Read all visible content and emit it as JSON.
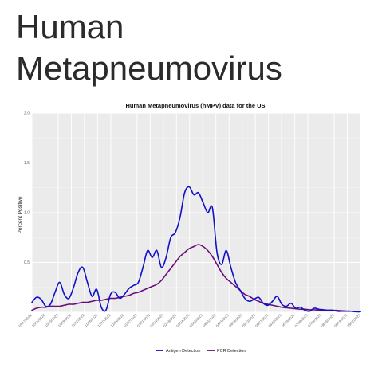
{
  "page": {
    "heading_lines": [
      "Human",
      "Metapneumovirus"
    ]
  },
  "chart_data": {
    "type": "line",
    "title": "Human Metapneumovirus (hMPV) data for the US",
    "xlabel": "",
    "ylabel": "Percent Positive",
    "ylim": [
      0,
      2.0
    ],
    "y_ticks": [
      0.0,
      0.5,
      1.0,
      1.5,
      2.0
    ],
    "y_tick_labels": [
      "",
      "0.5",
      "1.0",
      "1.5",
      "2.0"
    ],
    "x_tick_labels": [
      "09/17/2022",
      "10/01/2022",
      "10/15/2022",
      "10/29/2022",
      "11/12/2022",
      "11/26/2022",
      "12/10/2022",
      "12/24/2022",
      "01/07/2023",
      "01/21/2023",
      "02/04/2023",
      "02/18/2023",
      "03/04/2023",
      "03/18/2023",
      "04/01/2023",
      "04/15/2023",
      "04/29/2023",
      "05/13/2023",
      "05/27/2023",
      "06/10/2023",
      "06/24/2023",
      "07/08/2023",
      "07/22/2023",
      "08/05/2023",
      "08/19/2023",
      "09/02/2023"
    ],
    "grid": true,
    "legend_position": "bottom",
    "series": [
      {
        "name": "Antigen Detection",
        "color": "#1010c8",
        "values": [
          0.1,
          0.15,
          0.13,
          0.06,
          0.08,
          0.2,
          0.3,
          0.18,
          0.14,
          0.25,
          0.4,
          0.45,
          0.3,
          0.16,
          0.23,
          0.05,
          0.02,
          0.18,
          0.2,
          0.14,
          0.18,
          0.24,
          0.27,
          0.3,
          0.45,
          0.62,
          0.55,
          0.62,
          0.45,
          0.55,
          0.75,
          0.8,
          0.95,
          1.2,
          1.26,
          1.18,
          1.2,
          1.1,
          1.0,
          1.05,
          0.6,
          0.48,
          0.62,
          0.45,
          0.3,
          0.22,
          0.14,
          0.11,
          0.13,
          0.15,
          0.09,
          0.07,
          0.11,
          0.16,
          0.08,
          0.06,
          0.09,
          0.04,
          0.05,
          0.02,
          0.01,
          0.04,
          0.03,
          0.025,
          0.02,
          0.02,
          0.01,
          0.01,
          0.01,
          0.01,
          0.005,
          0.005
        ]
      },
      {
        "name": "PCR Detection",
        "color": "#6a0d7a",
        "values": [
          0.02,
          0.04,
          0.05,
          0.05,
          0.06,
          0.06,
          0.06,
          0.07,
          0.08,
          0.08,
          0.09,
          0.1,
          0.1,
          0.11,
          0.12,
          0.12,
          0.13,
          0.14,
          0.14,
          0.15,
          0.16,
          0.17,
          0.19,
          0.2,
          0.22,
          0.24,
          0.26,
          0.28,
          0.32,
          0.38,
          0.44,
          0.5,
          0.56,
          0.6,
          0.64,
          0.66,
          0.68,
          0.66,
          0.62,
          0.56,
          0.48,
          0.4,
          0.34,
          0.3,
          0.26,
          0.22,
          0.18,
          0.16,
          0.13,
          0.11,
          0.09,
          0.08,
          0.07,
          0.06,
          0.05,
          0.045,
          0.04,
          0.035,
          0.03,
          0.03,
          0.025,
          0.025,
          0.02,
          0.02,
          0.02,
          0.02,
          0.018,
          0.015,
          0.012,
          0.01,
          0.01,
          0.008
        ]
      }
    ]
  }
}
